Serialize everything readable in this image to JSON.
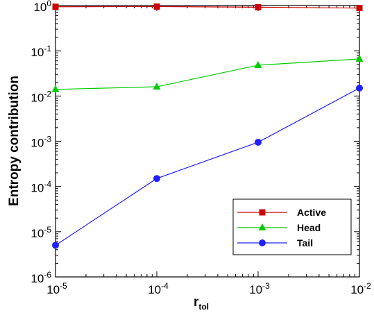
{
  "chart_data": {
    "type": "line",
    "title": "",
    "xlabel": "r",
    "xlabel_sub": "tol",
    "ylabel": "Entropy contribution",
    "x_scale": "log",
    "y_scale": "log",
    "xlim": [
      1e-05,
      0.01
    ],
    "ylim": [
      1e-06,
      1
    ],
    "x_ticks": [
      {
        "value": 1e-05,
        "base": "10",
        "exp": "-5"
      },
      {
        "value": 0.0001,
        "base": "10",
        "exp": "-4"
      },
      {
        "value": 0.001,
        "base": "10",
        "exp": "-3"
      },
      {
        "value": 0.01,
        "base": "10",
        "exp": "-2"
      }
    ],
    "y_ticks": [
      {
        "value": 1e-06,
        "base": "10",
        "exp": "-6"
      },
      {
        "value": 1e-05,
        "base": "10",
        "exp": "-5"
      },
      {
        "value": 0.0001,
        "base": "10",
        "exp": "-4"
      },
      {
        "value": 0.001,
        "base": "10",
        "exp": "-3"
      },
      {
        "value": 0.01,
        "base": "10",
        "exp": "-2"
      },
      {
        "value": 0.1,
        "base": "10",
        "exp": "-1"
      },
      {
        "value": 1,
        "base": "10",
        "exp": "0"
      }
    ],
    "x": [
      1e-05,
      0.0001,
      0.001,
      0.01
    ],
    "series": [
      {
        "name": "Active",
        "marker": "square",
        "color": "#cc0000",
        "values": [
          0.94,
          0.95,
          0.92,
          0.88
        ]
      },
      {
        "name": "Head",
        "marker": "triangle",
        "color": "#00cc00",
        "values": [
          0.014,
          0.016,
          0.048,
          0.066
        ]
      },
      {
        "name": "Tail",
        "marker": "circle",
        "color": "#2020ff",
        "values": [
          5e-06,
          0.00015,
          0.00095,
          0.015
        ]
      }
    ],
    "grid": false,
    "legend_position": "bottom-right"
  }
}
